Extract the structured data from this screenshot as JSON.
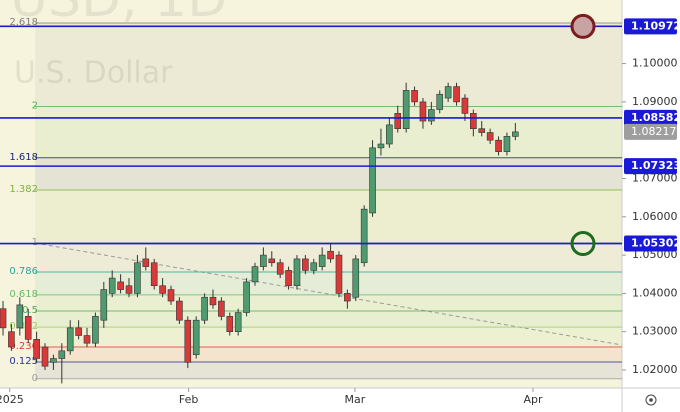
{
  "chart_data": {
    "type": "candlestick",
    "title": "USD, 1D",
    "subtitle": "U.S. Dollar",
    "xlim": [
      -0.36,
      73.7
    ],
    "xticks": [
      {
        "value": 0.8,
        "label": "2025"
      },
      {
        "value": 22.1,
        "label": "Feb"
      },
      {
        "value": 41.9,
        "label": "Mar"
      },
      {
        "value": 63.1,
        "label": "Apr"
      }
    ],
    "ylim": [
      1.0153,
      1.1166
    ],
    "yticks": [
      {
        "value": 1.1,
        "label": "1.10000"
      },
      {
        "value": 1.09,
        "label": "1.09000"
      },
      {
        "value": 1.07,
        "label": "1.07000"
      },
      {
        "value": 1.06,
        "label": "1.06000"
      },
      {
        "value": 1.05,
        "label": "1.05000"
      },
      {
        "value": 1.04,
        "label": "1.04000"
      },
      {
        "value": 1.03,
        "label": "1.03000"
      },
      {
        "value": 1.02,
        "label": "1.02000"
      }
    ],
    "up_color": "#4f9a6f",
    "down_color": "#d83a3a",
    "open": [
      1.036,
      1.03,
      1.031,
      1.034,
      1.028,
      1.026,
      1.022,
      1.023,
      1.025,
      1.031,
      1.029,
      1.027,
      1.033,
      1.04,
      1.043,
      1.042,
      1.04,
      1.049,
      1.048,
      1.042,
      1.041,
      1.038,
      1.033,
      1.024,
      1.033,
      1.039,
      1.038,
      1.034,
      1.03,
      1.035,
      1.043,
      1.047,
      1.049,
      1.048,
      1.046,
      1.042,
      1.049,
      1.046,
      1.047,
      1.051,
      1.05,
      1.04,
      1.039,
      1.048,
      1.061,
      1.078,
      1.079,
      1.087,
      1.083,
      1.093,
      1.09,
      1.085,
      1.088,
      1.091,
      1.094,
      1.091,
      1.087,
      1.083,
      1.082,
      1.08,
      1.077,
      1.081
    ],
    "high": [
      1.038,
      1.032,
      1.039,
      1.036,
      1.03,
      1.027,
      1.024,
      1.027,
      1.033,
      1.033,
      1.031,
      1.035,
      1.043,
      1.046,
      1.045,
      1.044,
      1.05,
      1.052,
      1.049,
      1.044,
      1.042,
      1.039,
      1.034,
      1.034,
      1.04,
      1.041,
      1.039,
      1.035,
      1.036,
      1.044,
      1.048,
      1.052,
      1.051,
      1.049,
      1.047,
      1.05,
      1.05,
      1.049,
      1.052,
      1.053,
      1.051,
      1.041,
      1.05,
      1.063,
      1.08,
      1.083,
      1.086,
      1.089,
      1.095,
      1.094,
      1.091,
      1.09,
      1.093,
      1.095,
      1.095,
      1.092,
      1.088,
      1.085,
      1.083,
      1.081,
      1.082,
      1.0845
    ],
    "low": [
      1.029,
      1.025,
      1.029,
      1.027,
      1.022,
      1.02,
      1.02,
      1.0165,
      1.024,
      1.028,
      1.026,
      1.026,
      1.031,
      1.039,
      1.04,
      1.039,
      1.039,
      1.046,
      1.041,
      1.039,
      1.037,
      1.032,
      1.0205,
      1.023,
      1.032,
      1.036,
      1.033,
      1.029,
      1.029,
      1.034,
      1.042,
      1.046,
      1.047,
      1.044,
      1.041,
      1.041,
      1.045,
      1.045,
      1.046,
      1.048,
      1.039,
      1.036,
      1.038,
      1.047,
      1.06,
      1.076,
      1.078,
      1.082,
      1.082,
      1.089,
      1.083,
      1.084,
      1.087,
      1.09,
      1.089,
      1.085,
      1.081,
      1.081,
      1.079,
      1.076,
      1.076,
      1.08
    ],
    "close": [
      1.031,
      1.026,
      1.037,
      1.028,
      1.023,
      1.021,
      1.023,
      1.025,
      1.031,
      1.029,
      1.027,
      1.034,
      1.041,
      1.044,
      1.041,
      1.04,
      1.048,
      1.047,
      1.042,
      1.04,
      1.038,
      1.033,
      1.022,
      1.033,
      1.039,
      1.037,
      1.034,
      1.03,
      1.035,
      1.043,
      1.047,
      1.05,
      1.048,
      1.045,
      1.042,
      1.049,
      1.046,
      1.048,
      1.05,
      1.049,
      1.04,
      1.038,
      1.049,
      1.062,
      1.078,
      1.079,
      1.084,
      1.083,
      1.093,
      1.09,
      1.085,
      1.088,
      1.092,
      1.094,
      1.09,
      1.087,
      1.083,
      1.082,
      1.08,
      1.077,
      1.081,
      1.08217
    ],
    "last_price": 1.08217,
    "levels": [
      1.10972,
      1.08582,
      1.07323,
      1.05302
    ],
    "level_color": "#1a1ad6",
    "fib_levels": [
      {
        "value": 1.1106,
        "label": "2.618",
        "color": "#808080"
      },
      {
        "value": 1.0888,
        "label": "2",
        "color": "#5fae4c"
      },
      {
        "value": 1.0754,
        "label": "1.618",
        "color": "#1a237e"
      },
      {
        "value": 1.067,
        "label": "1.382",
        "color": "#7cb342"
      },
      {
        "value": 1.0532,
        "label": "1",
        "color": "#9e9e9e"
      },
      {
        "value": 1.0456,
        "label": "0.786",
        "color": "#26a69a"
      },
      {
        "value": 1.0396,
        "label": "0.618",
        "color": "#66bb6a"
      },
      {
        "value": 1.0354,
        "label": "0.5",
        "color": "#4caf50"
      },
      {
        "value": 1.0312,
        "label": "0.382",
        "color": "#9ccc65"
      },
      {
        "value": 1.026,
        "label": "0.236",
        "color": "#e53935"
      },
      {
        "value": 1.0221,
        "label": "0.125",
        "color": "#283593"
      },
      {
        "value": 1.0177,
        "label": "0",
        "color": "#9e9e9e"
      }
    ]
  }
}
